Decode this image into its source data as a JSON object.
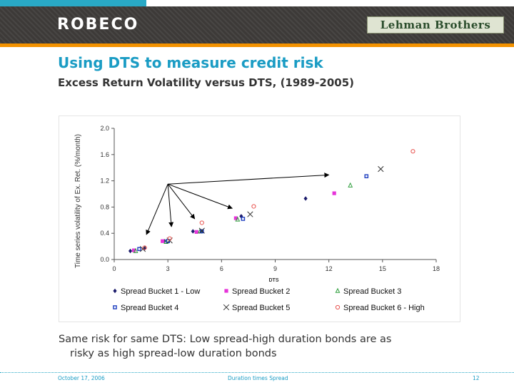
{
  "header": {
    "logo_left": "ROBECO",
    "logo_right": "Lehman Brothers"
  },
  "slide": {
    "title": "Using DTS to measure credit risk",
    "subtitle": "Excess Return Volatility versus DTS, (1989-2005)",
    "body_line1": "Same risk for same DTS: Low spread-high duration bonds are as",
    "body_line2": "risky as high spread-low duration bonds"
  },
  "footer": {
    "date": "October 17, 2006",
    "center": "Duration times Spread",
    "page": "12"
  },
  "colors": {
    "accent": "#1a9cc4",
    "orange": "#f39200",
    "header_dark": "#3d3a38"
  },
  "chart_data": {
    "type": "scatter",
    "title": "",
    "xlabel": "DTS",
    "ylabel": "Time series volatility of Ex. Ret. (%/month)",
    "xlim": [
      0,
      18
    ],
    "ylim": [
      0,
      2.0
    ],
    "xticks": [
      0,
      3,
      6,
      9,
      12,
      15,
      18
    ],
    "yticks": [
      "0.0",
      "0.4",
      "0.8",
      "1.2",
      "1.6",
      "2.0"
    ],
    "grid": false,
    "legend_position": "bottom",
    "series": [
      {
        "name": "Spread Bucket 1 - Low",
        "marker": "diamond",
        "color": "#1b1b6b",
        "x": [
          0.9,
          1.7,
          2.8,
          4.4,
          4.9,
          7.1,
          10.7
        ],
        "y": [
          0.13,
          0.17,
          0.28,
          0.43,
          0.43,
          0.66,
          0.93
        ]
      },
      {
        "name": "Spread Bucket 2",
        "marker": "square",
        "color": "#e633d9",
        "x": [
          1.1,
          2.7,
          4.6,
          6.8,
          12.3
        ],
        "y": [
          0.14,
          0.28,
          0.42,
          0.63,
          1.01
        ]
      },
      {
        "name": "Spread Bucket 3",
        "marker": "triangle",
        "color": "#2e9e3c",
        "x": [
          1.2,
          2.9,
          4.8,
          6.9,
          13.2
        ],
        "y": [
          0.13,
          0.27,
          0.43,
          0.61,
          1.13
        ]
      },
      {
        "name": "Spread Bucket 4",
        "marker": "open-square",
        "color": "#1f3fc0",
        "x": [
          1.4,
          3.0,
          4.9,
          7.2,
          14.1
        ],
        "y": [
          0.16,
          0.28,
          0.43,
          0.62,
          1.27
        ]
      },
      {
        "name": "Spread Bucket 5",
        "marker": "x",
        "color": "#333333",
        "x": [
          1.6,
          3.1,
          4.9,
          7.6,
          14.9
        ],
        "y": [
          0.16,
          0.29,
          0.44,
          0.69,
          1.38
        ]
      },
      {
        "name": "Spread Bucket 6 - High",
        "marker": "open-circle",
        "color": "#e8534f",
        "x": [
          1.7,
          3.1,
          4.9,
          7.8,
          16.7
        ],
        "y": [
          0.18,
          0.32,
          0.56,
          0.81,
          1.65
        ]
      }
    ],
    "arrows": {
      "origin": [
        3.0,
        1.15
      ],
      "targets": [
        [
          1.8,
          0.38
        ],
        [
          3.2,
          0.5
        ],
        [
          4.5,
          0.62
        ],
        [
          6.6,
          0.78
        ],
        [
          12.0,
          1.29
        ]
      ]
    }
  }
}
